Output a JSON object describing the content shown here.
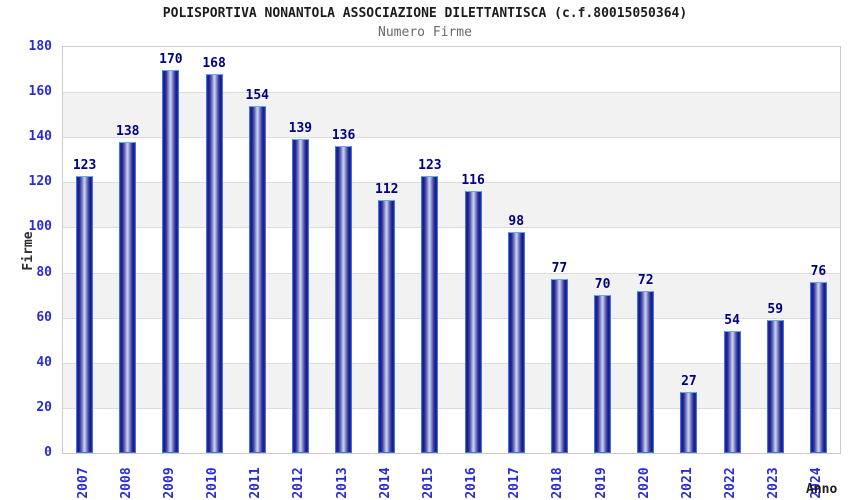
{
  "header": {
    "title": "POLISPORTIVA NONANTOLA ASSOCIAZIONE DILETTANTISCA (c.f.80015050364)",
    "subtitle": "Numero Firme"
  },
  "chart_data": {
    "type": "bar",
    "title": "Numero Firme",
    "categories": [
      "2007",
      "2008",
      "2009",
      "2010",
      "2011",
      "2012",
      "2013",
      "2014",
      "2015",
      "2016",
      "2017",
      "2018",
      "2019",
      "2020",
      "2021",
      "2022",
      "2023",
      "2024"
    ],
    "values": [
      123,
      138,
      170,
      168,
      154,
      139,
      136,
      112,
      123,
      116,
      98,
      77,
      70,
      72,
      27,
      54,
      59,
      76
    ],
    "xlabel": "Anno",
    "ylabel": "Firme",
    "ylim": [
      0,
      180
    ],
    "ytick_step": 20,
    "yticks": [
      0,
      20,
      40,
      60,
      80,
      100,
      120,
      140,
      160,
      180
    ],
    "grid": true,
    "legend": false,
    "bands_alternating": true,
    "colors": {
      "bar_edge": "#181884",
      "bar_center": "#cdd3ee",
      "bar_border": "#3f74e0",
      "bar_border_top": "#66aaf2",
      "tick_label": "#2b2bd4",
      "value_label": "#00007d",
      "band_gray": "#f2f2f2",
      "band_white": "#ffffff",
      "gridline": "#dcdcdc",
      "plot_border": "#cccccc",
      "title": "#1c1c1c",
      "subtitle": "#6b6b6b"
    }
  }
}
